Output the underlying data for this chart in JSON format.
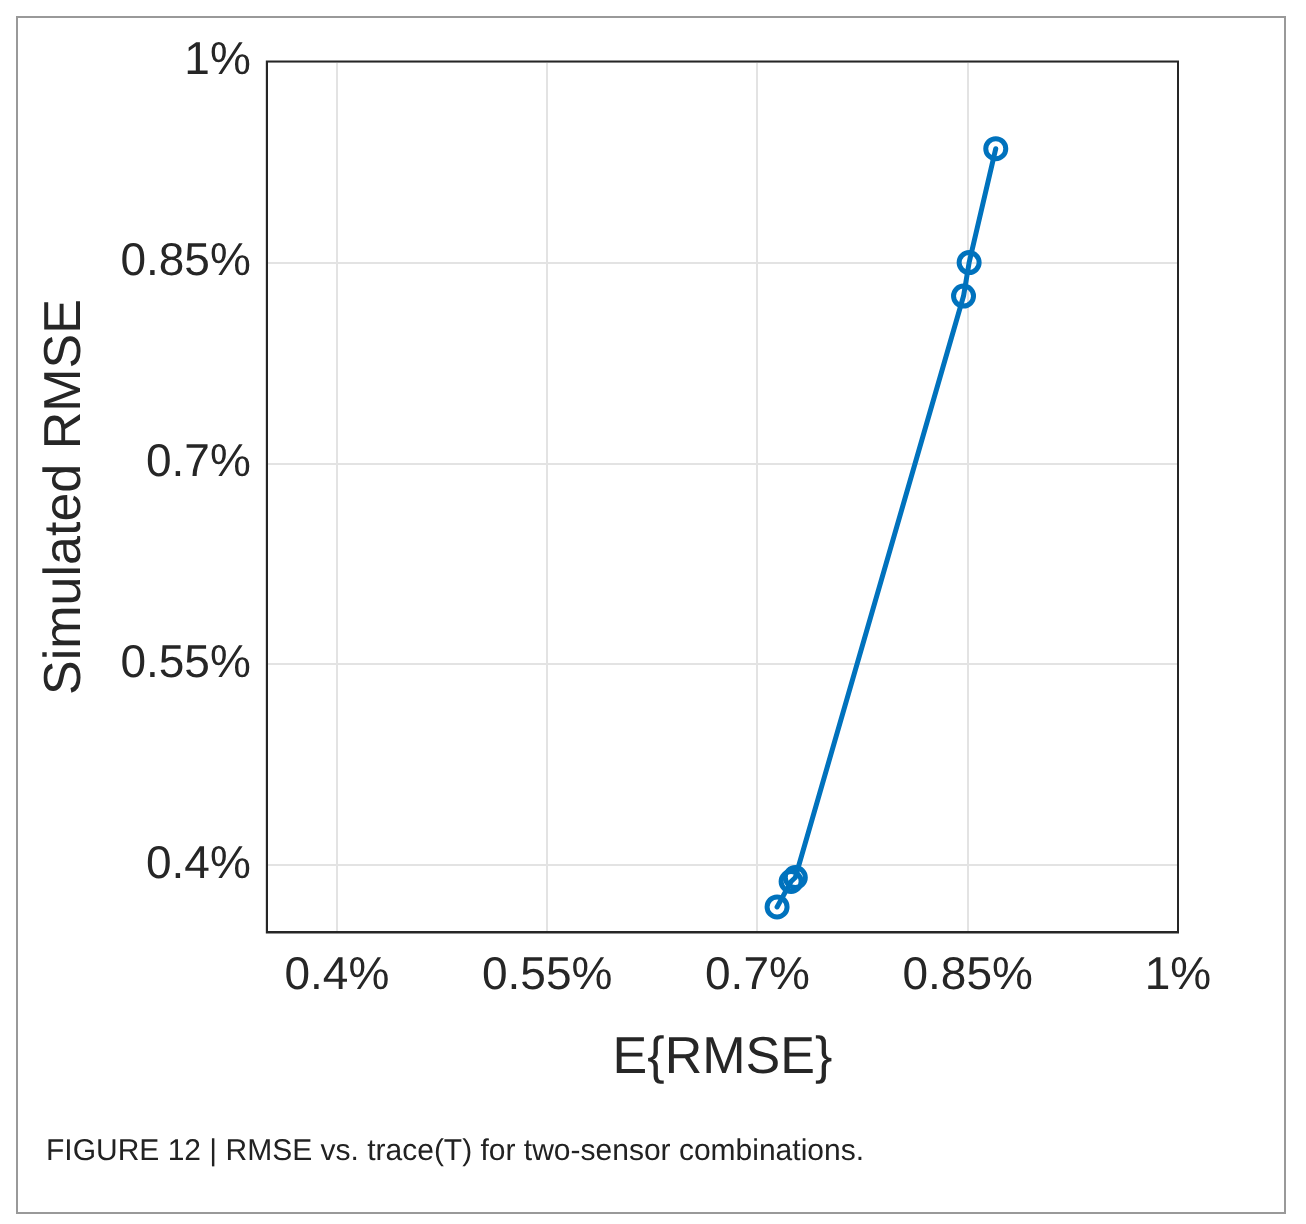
{
  "chart_data": {
    "type": "line",
    "xlabel": "E{RMSE}",
    "ylabel": "Simulated RMSE",
    "annotations": [
      "FIGURE 12 | RMSE vs. trace(T) for two-sensor combinations."
    ],
    "x": [
      0.714,
      0.724,
      0.727,
      0.847,
      0.851,
      0.87
    ],
    "series": [
      {
        "color": "#0072bd",
        "values": [
          0.369,
          0.388,
          0.391,
          0.825,
          0.85,
          0.935
        ]
      }
    ],
    "xlim": [
      0.35,
      1
    ],
    "ylim": [
      0.35,
      1
    ],
    "xticks": [
      {
        "value": 0.4,
        "label": "0.4%"
      },
      {
        "value": 0.55,
        "label": "0.55%"
      },
      {
        "value": 0.7,
        "label": "0.7%"
      },
      {
        "value": 0.85,
        "label": "0.85%"
      },
      {
        "value": 1,
        "label": "1%"
      }
    ],
    "yticks": [
      {
        "value": 0.4,
        "label": "0.4%"
      },
      {
        "value": 0.55,
        "label": "0.55%"
      },
      {
        "value": 0.7,
        "label": "0.7%"
      },
      {
        "value": 0.85,
        "label": "0.85%"
      },
      {
        "value": 1,
        "label": "1%"
      }
    ],
    "grid": true,
    "legend": false,
    "marker": "circle",
    "line_style": "solid"
  }
}
